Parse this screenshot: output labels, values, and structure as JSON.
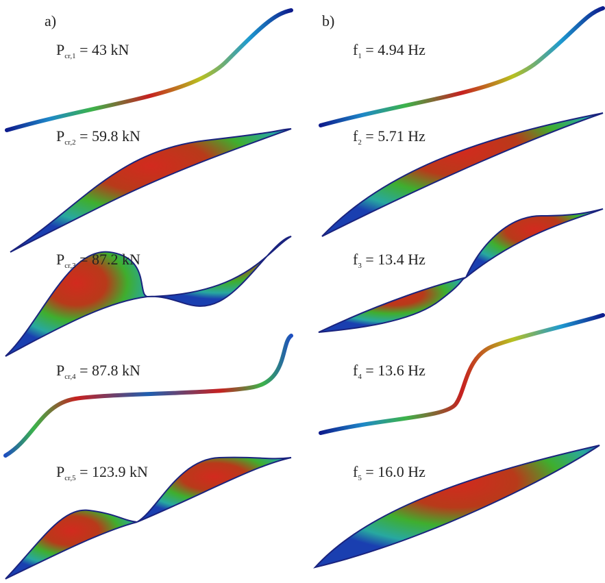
{
  "panels": [
    {
      "label": "a)",
      "modes": [
        {
          "symbol": "P",
          "sub": "cr,1",
          "text": " = 43 kN"
        },
        {
          "symbol": "P",
          "sub": "cr,2",
          "text": " = 59.8 kN"
        },
        {
          "symbol": "P",
          "sub": "cr,3",
          "text": " = 87.2 kN"
        },
        {
          "symbol": "P",
          "sub": "cr,4",
          "text": " = 87.8 kN"
        },
        {
          "symbol": "P",
          "sub": "cr,5",
          "text": " = 123.9 kN"
        }
      ]
    },
    {
      "label": "b)",
      "modes": [
        {
          "symbol": "f",
          "sub": "1",
          "text": " = 4.94 Hz"
        },
        {
          "symbol": "f",
          "sub": "2",
          "text": " = 5.71 Hz"
        },
        {
          "symbol": "f",
          "sub": "3",
          "text": " = 13.4 Hz"
        },
        {
          "symbol": "f",
          "sub": "4",
          "text": " = 13.6 Hz"
        },
        {
          "symbol": "f",
          "sub": "5",
          "text": " = 16.0 Hz"
        }
      ]
    }
  ]
}
